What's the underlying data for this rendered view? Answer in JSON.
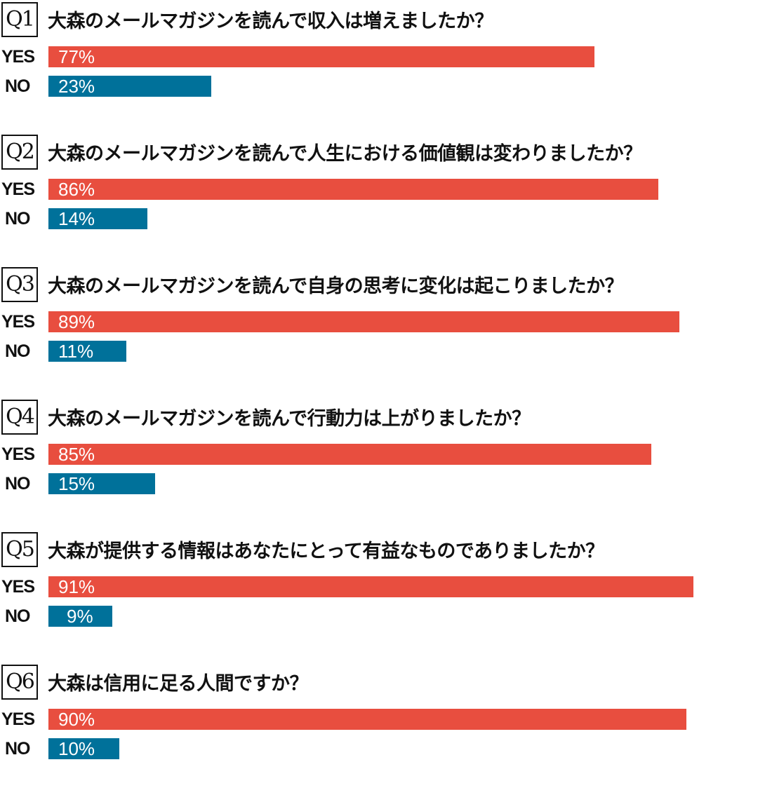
{
  "chart_data": {
    "type": "bar",
    "orientation": "horizontal",
    "colors": {
      "YES": "#e84e3f",
      "NO": "#00719a"
    },
    "categories": [
      "YES",
      "NO"
    ],
    "questions": [
      {
        "label": "Q1",
        "title": "大森のメールマガジンを読んで収入は増えましたか？",
        "yes": 77,
        "no": 23,
        "yes_text": "77%",
        "no_text": "23%"
      },
      {
        "label": "Q2",
        "title": "大森のメールマガジンを読んで人生における価値観は変わりましたか？",
        "yes": 86,
        "no": 14,
        "yes_text": "86%",
        "no_text": "14%"
      },
      {
        "label": "Q3",
        "title": "大森のメールマガジンを読んで自身の思考に変化は起こりましたか？",
        "yes": 89,
        "no": 11,
        "yes_text": "89%",
        "no_text": "11%"
      },
      {
        "label": "Q4",
        "title": "大森のメールマガジンを読んで行動力は上がりましたか？",
        "yes": 85,
        "no": 15,
        "yes_text": "85%",
        "no_text": "15%"
      },
      {
        "label": "Q5",
        "title": "大森が提供する情報はあなたにとって有益なものでありましたか？",
        "yes": 91,
        "no": 9,
        "yes_text": "91%",
        "no_text": "9%"
      },
      {
        "label": "Q6",
        "title": "大森は信用に足る人間ですか？",
        "yes": 90,
        "no": 10,
        "yes_text": "90%",
        "no_text": "10%"
      }
    ]
  }
}
